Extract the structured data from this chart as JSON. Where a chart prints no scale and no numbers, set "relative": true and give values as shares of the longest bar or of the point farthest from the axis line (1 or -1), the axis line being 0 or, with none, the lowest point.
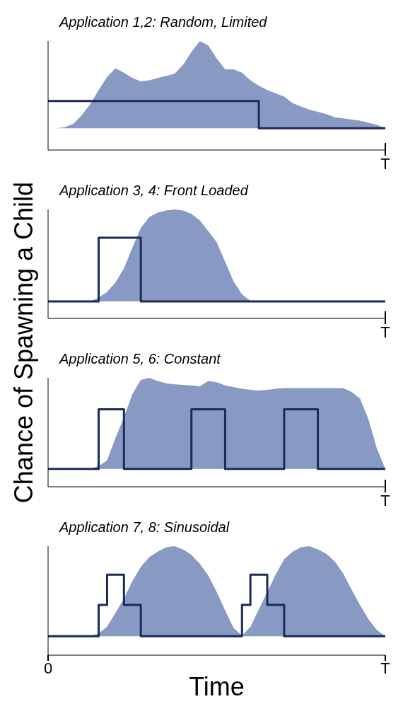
{
  "chart_data": [
    {
      "type": "area",
      "title": "Application 1,2: Random, Limited",
      "ylabel": "Chance of Spawning a Child",
      "relative": true,
      "legend": false,
      "grid": false,
      "annotations": [
        "T"
      ],
      "categories": [
        null,
        null,
        null,
        null,
        null,
        null,
        null,
        null,
        null,
        null,
        null,
        null,
        null,
        null,
        null,
        null,
        null,
        null,
        null,
        null,
        null,
        null,
        null,
        null,
        null,
        null,
        null,
        null,
        null,
        null,
        null,
        null,
        null,
        null,
        null,
        null,
        null,
        null,
        null,
        null,
        null
      ],
      "series": [
        {
          "type": "area",
          "color": "#8899c4",
          "values": [
            0.2,
            0.2,
            0.21,
            0.24,
            0.32,
            0.42,
            0.55,
            0.67,
            0.75,
            0.71,
            0.66,
            0.63,
            0.64,
            0.66,
            0.68,
            0.7,
            0.78,
            0.9,
            1,
            0.96,
            0.84,
            0.74,
            0.74,
            0.71,
            0.64,
            0.59,
            0.55,
            0.52,
            0.49,
            0.43,
            0.4,
            0.37,
            0.35,
            0.33,
            0.3,
            0.29,
            0.28,
            0.27,
            0.25,
            0.23,
            0.2
          ]
        },
        {
          "type": "step",
          "color": "#1a2a5a",
          "values": [
            0.45,
            0.45,
            0.45,
            0.45,
            0.45,
            0.45,
            0.45,
            0.45,
            0.45,
            0.45,
            0.45,
            0.45,
            0.45,
            0.45,
            0.45,
            0.45,
            0.45,
            0.45,
            0.45,
            0.45,
            0.45,
            0.45,
            0.45,
            0.45,
            0.45,
            0.2,
            0.2,
            0.2,
            0.2,
            0.2,
            0.2,
            0.2,
            0.2,
            0.2,
            0.2,
            0.2,
            0.2,
            0.2,
            0.2,
            0.2,
            0.2
          ]
        }
      ]
    },
    {
      "type": "area",
      "title": "Application 3, 4: Front Loaded",
      "relative": true,
      "legend": false,
      "grid": false,
      "annotations": [
        "T"
      ],
      "categories": [
        null,
        null,
        null,
        null,
        null,
        null,
        null,
        null,
        null,
        null,
        null,
        null,
        null,
        null,
        null,
        null,
        null,
        null,
        null,
        null,
        null,
        null,
        null,
        null,
        null,
        null,
        null,
        null,
        null,
        null,
        null,
        null,
        null,
        null,
        null,
        null,
        null,
        null,
        null,
        null,
        null
      ],
      "series": [
        {
          "type": "area",
          "color": "#8899c4",
          "values": [
            0.156,
            0.156,
            0.156,
            0.156,
            0.156,
            0.156,
            0.19,
            0.244,
            0.33,
            0.46,
            0.65,
            0.83,
            0.93,
            0.97,
            0.99,
            1,
            0.99,
            0.96,
            0.9,
            0.8,
            0.7,
            0.52,
            0.34,
            0.22,
            0.16,
            0.156,
            0.156,
            0.156,
            0.156,
            0.156,
            0.156,
            0.156,
            0.156,
            0.156,
            0.156,
            0.156,
            0.156,
            0.156,
            0.156,
            0.156,
            0.156
          ]
        },
        {
          "type": "step",
          "color": "#1a2a5a",
          "values": [
            0.156,
            0.156,
            0.156,
            0.156,
            0.156,
            0.156,
            0.741,
            0.741,
            0.741,
            0.741,
            0.741,
            0.156,
            0.156,
            0.156,
            0.156,
            0.156,
            0.156,
            0.156,
            0.156,
            0.156,
            0.156,
            0.156,
            0.156,
            0.156,
            0.156,
            0.156,
            0.156,
            0.156,
            0.156,
            0.156,
            0.156,
            0.156,
            0.156,
            0.156,
            0.156,
            0.156,
            0.156,
            0.156,
            0.156,
            0.156,
            0.156
          ]
        }
      ]
    },
    {
      "type": "area",
      "title": "Application 5, 6: Constant",
      "relative": true,
      "legend": false,
      "grid": false,
      "annotations": [
        "T"
      ],
      "categories": [
        null,
        null,
        null,
        null,
        null,
        null,
        null,
        null,
        null,
        null,
        null,
        null,
        null,
        null,
        null,
        null,
        null,
        null,
        null,
        null,
        null,
        null,
        null,
        null,
        null,
        null,
        null,
        null,
        null,
        null,
        null,
        null,
        null,
        null,
        null,
        null,
        null,
        null,
        null,
        null,
        null
      ],
      "series": [
        {
          "type": "area",
          "color": "#8899c4",
          "values": [
            0.164,
            0.164,
            0.164,
            0.164,
            0.164,
            0.164,
            0.19,
            0.242,
            0.45,
            0.64,
            0.85,
            0.98,
            1,
            0.97,
            0.95,
            0.94,
            0.935,
            0.93,
            0.922,
            0.97,
            0.96,
            0.93,
            0.915,
            0.9,
            0.89,
            0.883,
            0.89,
            0.9,
            0.906,
            0.906,
            0.906,
            0.906,
            0.906,
            0.906,
            0.906,
            0.906,
            0.87,
            0.81,
            0.62,
            0.35,
            0.164
          ]
        },
        {
          "type": "step",
          "color": "#1a2a5a",
          "values": [
            0.164,
            0.164,
            0.164,
            0.164,
            0.164,
            0.164,
            0.711,
            0.711,
            0.711,
            0.164,
            0.164,
            0.164,
            0.164,
            0.164,
            0.164,
            0.164,
            0.164,
            0.711,
            0.711,
            0.711,
            0.711,
            0.164,
            0.164,
            0.164,
            0.164,
            0.164,
            0.164,
            0.164,
            0.711,
            0.711,
            0.711,
            0.711,
            0.164,
            0.164,
            0.164,
            0.164,
            0.164,
            0.164,
            0.164,
            0.164,
            0.164
          ]
        }
      ]
    },
    {
      "type": "area",
      "title": "Application 7, 8: Sinusoidal",
      "xlabel": "Time",
      "relative": true,
      "legend": false,
      "grid": false,
      "categories": [
        "0",
        null,
        null,
        null,
        null,
        null,
        null,
        null,
        null,
        null,
        null,
        null,
        null,
        null,
        null,
        null,
        null,
        null,
        null,
        null,
        null,
        null,
        null,
        null,
        null,
        null,
        null,
        null,
        null,
        null,
        null,
        null,
        null,
        null,
        null,
        null,
        null,
        null,
        null,
        null,
        "T"
      ],
      "series": [
        {
          "type": "area",
          "color": "#8899c4",
          "values": [
            0.174,
            0.174,
            0.174,
            0.174,
            0.174,
            0.174,
            0.2,
            0.261,
            0.39,
            0.52,
            0.68,
            0.81,
            0.9,
            0.95,
            0.99,
            1,
            0.97,
            0.92,
            0.84,
            0.73,
            0.58,
            0.41,
            0.25,
            0.18,
            0.26,
            0.42,
            0.58,
            0.74,
            0.88,
            0.95,
            0.99,
            1,
            0.97,
            0.93,
            0.86,
            0.75,
            0.6,
            0.46,
            0.33,
            0.23,
            0.174
          ]
        },
        {
          "type": "step",
          "color": "#1a2a5a",
          "values": [
            0.174,
            0.174,
            0.174,
            0.174,
            0.174,
            0.174,
            0.461,
            0.739,
            0.739,
            0.461,
            0.461,
            0.174,
            0.174,
            0.174,
            0.174,
            0.174,
            0.174,
            0.174,
            0.174,
            0.174,
            0.174,
            0.174,
            0.174,
            0.461,
            0.739,
            0.739,
            0.461,
            0.461,
            0.174,
            0.174,
            0.174,
            0.174,
            0.174,
            0.174,
            0.174,
            0.174,
            0.174,
            0.174,
            0.174,
            0.174,
            0.174
          ]
        }
      ]
    }
  ]
}
